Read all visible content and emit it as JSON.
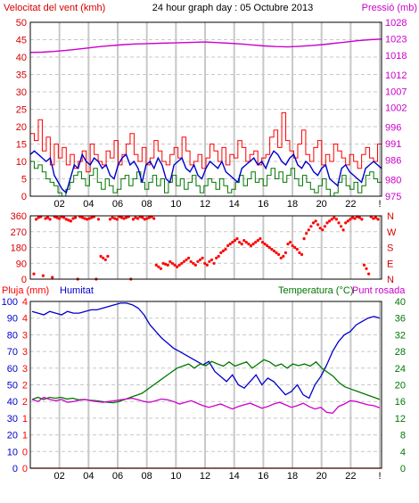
{
  "colors": {
    "wind": "#d60000",
    "gust": "#ff0000",
    "speed": "#0000cc",
    "dir": "#ff0000",
    "pressure": "#cc00cc",
    "humidity": "#0000cc",
    "temperature": "#007700",
    "dewpoint": "#cc00cc",
    "rain": "#ff0000",
    "grid": "#c8c8c8"
  },
  "chart_data": [
    {
      "type": "line",
      "title": "24 hour graph day : 05 Octubre 2013",
      "ylabel": "Velocitat del vent (kmh)",
      "y2label": "Pressió (mb)",
      "x_ticks": [
        "02",
        "04",
        "06",
        "08",
        "10",
        "12",
        "14",
        "16",
        "18",
        "20",
        "22",
        "!"
      ],
      "y_ticks": [
        "0",
        "5",
        "10",
        "15",
        "20",
        "25",
        "30",
        "35",
        "40",
        "45",
        "50"
      ],
      "y2_ticks": [
        "975",
        "980",
        "986",
        "991",
        "996",
        "1002",
        "1007",
        "1012",
        "1018",
        "1023",
        "1028"
      ],
      "ylim": [
        0,
        50
      ],
      "y2lim": [
        975,
        1028
      ],
      "series": [
        {
          "axis": "left",
          "values": [
            18,
            16,
            22,
            13,
            17,
            9,
            15,
            11,
            14,
            9,
            12,
            8,
            10,
            13,
            7,
            15,
            12,
            10,
            9,
            13,
            11,
            16,
            9,
            12,
            15,
            18,
            12,
            10,
            14,
            9,
            11,
            16,
            13,
            10,
            9,
            12,
            14,
            11,
            17,
            13,
            9,
            10,
            12,
            8,
            11,
            15,
            13,
            10,
            14,
            9,
            12,
            11,
            16,
            14,
            10,
            12,
            13,
            9,
            11,
            12,
            17,
            19,
            14,
            24,
            16,
            13,
            11,
            15,
            19,
            12,
            10,
            14,
            16,
            9,
            12,
            10,
            15,
            13,
            11,
            9,
            12,
            10,
            8,
            12,
            14,
            11,
            10,
            15
          ]
        },
        {
          "axis": "left",
          "values": [
            12,
            13,
            12,
            11,
            10,
            11,
            6,
            4,
            2,
            1,
            5,
            9,
            8,
            12,
            10,
            9,
            11,
            10,
            8,
            9,
            6,
            5,
            9,
            11,
            12,
            9,
            10,
            8,
            4,
            9,
            10,
            8,
            11,
            9,
            5,
            4,
            9,
            10,
            11,
            8,
            7,
            9,
            6,
            5,
            8,
            10,
            9,
            8,
            10,
            7,
            6,
            5,
            4,
            8,
            9,
            10,
            11,
            9,
            10,
            8,
            11,
            13,
            12,
            10,
            9,
            11,
            12,
            9,
            8,
            10,
            9,
            7,
            6,
            8,
            9,
            5,
            4,
            3,
            8,
            9,
            7,
            6,
            5,
            4,
            8,
            9,
            10,
            9,
            8
          ]
        },
        {
          "axis": "left",
          "values": [
            10,
            8,
            9,
            7,
            5,
            4,
            3,
            1,
            0,
            2,
            4,
            6,
            7,
            5,
            3,
            6,
            8,
            4,
            2,
            5,
            3,
            1,
            2,
            5,
            6,
            3,
            5,
            7,
            4,
            2,
            4,
            6,
            3,
            5,
            1,
            4,
            6,
            3,
            5,
            2,
            4,
            6,
            3,
            1,
            3,
            5,
            4,
            2,
            5,
            3,
            1,
            2,
            4,
            6,
            3,
            5,
            7,
            4,
            5,
            3,
            6,
            8,
            5,
            7,
            4,
            6,
            8,
            5,
            3,
            6,
            4,
            2,
            1,
            3,
            5,
            2,
            0,
            1,
            4,
            6,
            3,
            2,
            4,
            1,
            3,
            6,
            7,
            5,
            4
          ]
        },
        {
          "axis": "right",
          "values": [
            1018.8,
            1018.9,
            1019.1,
            1019.4,
            1019.8,
            1020.2,
            1020.6,
            1020.9,
            1021.2,
            1021.4,
            1021.5,
            1021.6,
            1021.7,
            1021.8,
            1021.9,
            1022.0,
            1021.8,
            1021.6,
            1021.4,
            1021.1,
            1020.8,
            1020.6,
            1020.5,
            1020.7,
            1020.9,
            1021.2,
            1021.6,
            1022.0,
            1022.4,
            1022.7,
            1022.9
          ]
        }
      ]
    },
    {
      "type": "scatter",
      "y_ticks": [
        "360",
        "270",
        "180",
        "90",
        "0"
      ],
      "y2_ticks": [
        "N",
        "W",
        "S",
        "E",
        "N"
      ],
      "ylim": [
        0,
        360
      ],
      "series": [
        {
          "values": [
            30,
            340,
            350,
            355,
            20,
            345,
            350,
            340,
            10,
            355,
            350,
            345,
            355,
            350,
            340,
            335,
            330,
            345,
            350,
            0,
            355,
            350,
            345,
            340,
            345,
            350,
            355,
            0,
            340,
            130,
            120,
            110,
            130,
            340,
            350,
            345,
            340,
            355,
            350,
            345,
            350,
            355,
            0,
            340,
            350,
            345,
            355,
            350,
            340,
            345,
            350,
            355,
            345,
            80,
            70,
            60,
            90,
            85,
            80,
            100,
            90,
            80,
            70,
            80,
            90,
            100,
            110,
            120,
            100,
            90,
            80,
            100,
            110,
            120,
            90,
            80,
            100,
            110,
            90,
            120,
            130,
            150,
            160,
            170,
            190,
            200,
            210,
            220,
            230,
            210,
            200,
            220,
            210,
            200,
            190,
            200,
            210,
            220,
            230,
            210,
            200,
            190,
            180,
            170,
            160,
            150,
            140,
            120,
            130,
            150,
            200,
            210,
            190,
            180,
            170,
            150,
            140,
            230,
            260,
            280,
            300,
            320,
            330,
            310,
            290,
            280,
            300,
            320,
            330,
            340,
            350,
            340,
            320,
            300,
            280,
            320,
            330,
            340,
            350,
            345,
            355,
            350,
            340,
            80,
            60,
            30,
            355,
            345,
            350,
            340
          ]
        }
      ]
    },
    {
      "type": "line",
      "ylabel": "Pluja (mm)",
      "y2label": "Temperatura (°C)",
      "legend": [
        "Humitat",
        "Punt rosada"
      ],
      "y_ticks": [
        "0",
        "10",
        "20",
        "30",
        "40",
        "50",
        "60",
        "70",
        "80",
        "90",
        "100"
      ],
      "y_mid_ticks": [
        "0",
        "0",
        "1",
        "1",
        "2",
        "2",
        "3",
        "3",
        "3",
        "4",
        "4"
      ],
      "y2_ticks": [
        "0",
        "4",
        "8",
        "12",
        "16",
        "20",
        "24",
        "28",
        "32",
        "36",
        "40"
      ],
      "ylim": [
        0,
        100
      ],
      "y2lim": [
        0,
        40
      ],
      "series": [
        {
          "axis": "left",
          "values": [
            94,
            93,
            92,
            94,
            93,
            92,
            94,
            93,
            93,
            94,
            95,
            95,
            96,
            97,
            98,
            99,
            99,
            98,
            96,
            92,
            86,
            82,
            78,
            75,
            72,
            70,
            68,
            66,
            64,
            62,
            64,
            58,
            55,
            52,
            56,
            50,
            48,
            52,
            56,
            50,
            54,
            52,
            48,
            44,
            46,
            50,
            44,
            42,
            50,
            55,
            62,
            70,
            76,
            80,
            82,
            86,
            88,
            90,
            91,
            90
          ]
        },
        {
          "axis": "right",
          "values": [
            16.5,
            17,
            16.5,
            17,
            16.8,
            17,
            16.6,
            16.8,
            16.4,
            16.5,
            16.3,
            16.2,
            16.0,
            15.8,
            15.7,
            16.0,
            16.5,
            17,
            17.5,
            18,
            19,
            20,
            21,
            22,
            23,
            24,
            24.5,
            25,
            24,
            25,
            24.6,
            25.6,
            25.0,
            24.5,
            25.5,
            24.5,
            25,
            25.5,
            24,
            25,
            26,
            25.5,
            24.5,
            25,
            24,
            25,
            24.6,
            25,
            24.5,
            25.5,
            24,
            23,
            22,
            20.5,
            19.5,
            19,
            18.5,
            18,
            17.5,
            17,
            16.5
          ]
        },
        {
          "axis": "right",
          "values": [
            16.5,
            16,
            17,
            16.5,
            16.2,
            16.5,
            15.8,
            16,
            16.3,
            16.5,
            16.2,
            16.0,
            15.8,
            16.0,
            16.2,
            16.4,
            16.6,
            16.8,
            16.4,
            16.0,
            15.8,
            16.2,
            16.6,
            16.4,
            16.0,
            15.4,
            15.8,
            16.2,
            15.6,
            15.0,
            14.6,
            15.0,
            15.4,
            14.8,
            14.2,
            14.8,
            15.2,
            15.6,
            15.0,
            14.4,
            14.8,
            15.4,
            15.8,
            15.2,
            14.6,
            15.0,
            15.6,
            14.8,
            14.2,
            14.6,
            13.4,
            13.2,
            14.8,
            15.4,
            16.2,
            16.0,
            15.6,
            15.2,
            15.0,
            14.5
          ]
        },
        {
          "axis": "left",
          "values": [
            0,
            0,
            0,
            0,
            0,
            0,
            0,
            0,
            0,
            0,
            0,
            0
          ]
        }
      ]
    }
  ]
}
